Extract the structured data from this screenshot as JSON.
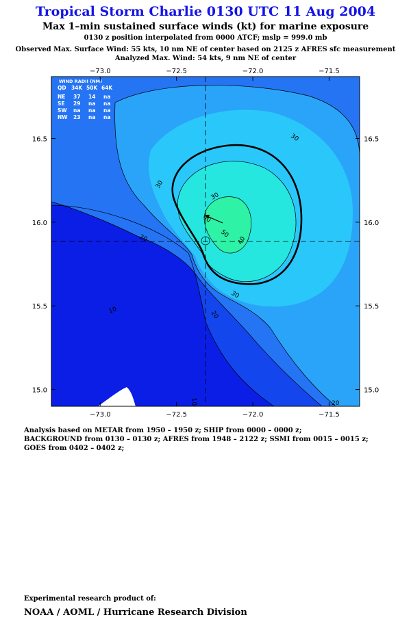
{
  "header": {
    "title": "Tropical Storm Charlie 0130 UTC 11 Aug 2004",
    "subtitle": "Max 1–min sustained surface winds (kt) for marine exposure",
    "line3": "0130 z position interpolated from 0000 ATCF; mslp = 999.0 mb",
    "line4": "Observed Max. Surface Wind: 55 kts, 10 nm NE of center based on 2125 z AFRES sfc measurement",
    "line5": "Analyzed Max. Wind: 54 kts, 9 nm NE of center"
  },
  "wind_radii": {
    "title": "WIND RADII (NM)",
    "columns": [
      "QD",
      "34K",
      "50K",
      "64K"
    ],
    "rows": [
      [
        "NE",
        "37",
        "14",
        "na"
      ],
      [
        "SE",
        "29",
        "na",
        "na"
      ],
      [
        "SW",
        "na",
        "na",
        "na"
      ],
      [
        "NW",
        "23",
        "na",
        "na"
      ]
    ]
  },
  "chart_data": {
    "type": "contour",
    "x_ticks": [
      -73.0,
      -72.5,
      -72.0,
      -71.5
    ],
    "x_tick_labels": [
      "−73.0",
      "−72.5",
      "−72.0",
      "−71.5"
    ],
    "y_ticks": [
      16.5,
      16.0,
      15.5,
      15.0
    ],
    "y_tick_labels": [
      "16.5",
      "16.0",
      "15.5",
      "15.0"
    ],
    "xlim": [
      -73.32,
      -71.3
    ],
    "ylim": [
      14.9,
      16.87
    ],
    "center": {
      "lon": -72.3,
      "lat": 15.9
    },
    "contour_labels": [
      "10",
      "20",
      "30",
      "40",
      "50",
      "10",
      "20",
      "20",
      "30",
      "30",
      "30",
      "40"
    ],
    "contour_levels": [
      10,
      20,
      30,
      34,
      40,
      50
    ],
    "colors": {
      "lt10": "#0a1ee6",
      "10to20": "#1446ee",
      "20to30": "#2474f4",
      "30to34": "#2aa4f8",
      "34to40": "#2ac8fa",
      "40to50": "#26e6e0",
      "gt50": "#2ef2a6",
      "land": "#ffffff"
    }
  },
  "analysis": {
    "line1": "Analysis based on  METAR from 1950 – 1950 z;  SHIP from 0000 – 0000 z;",
    "line2": "BACKGROUND from 0130 – 0130 z;  AFRES from 1948 – 2122 z;  SSMI from 0015 – 0015 z;",
    "line3": "GOES from 0402 – 0402 z;"
  },
  "footer": {
    "line1": "Experimental research product of:",
    "line2": "NOAA / AOML / Hurricane Research Division"
  }
}
